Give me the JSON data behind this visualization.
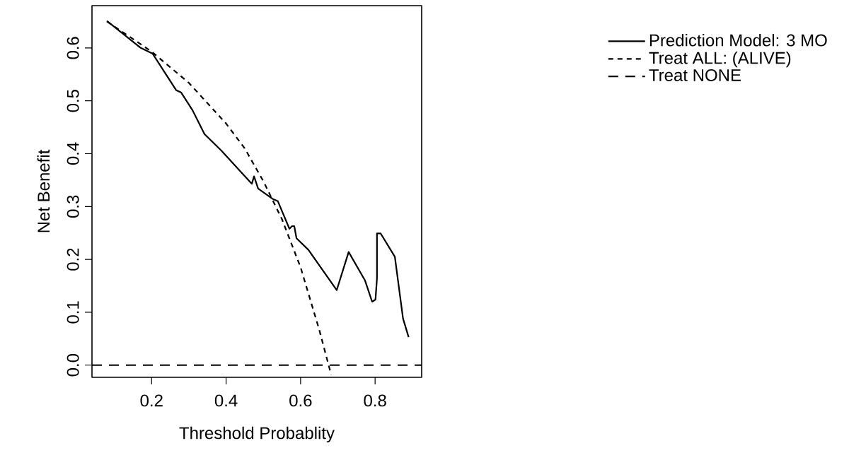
{
  "chart_data": {
    "type": "line",
    "xlabel": "Threshold Probablity",
    "ylabel": "Net Benefit",
    "xlim": [
      0.04,
      0.925
    ],
    "ylim": [
      -0.023,
      0.68
    ],
    "xticks": [
      0.2,
      0.4,
      0.6,
      0.8
    ],
    "yticks": [
      {
        "value": 0,
        "label": "0.0"
      },
      0.1,
      0.2,
      0.3,
      0.4,
      0.5,
      0.6
    ],
    "legend": "top right",
    "series": [
      {
        "name": "Prediction Model: 3 MO",
        "color": "#000000",
        "line_style": "solid",
        "x": [
          0.08,
          0.171,
          0.203,
          0.266,
          0.279,
          0.31,
          0.342,
          0.387,
          0.469,
          0.475,
          0.486,
          0.526,
          0.539,
          0.57,
          0.577,
          0.583,
          0.589,
          0.621,
          0.697,
          0.729,
          0.773,
          0.792,
          0.801,
          0.805,
          0.805,
          0.815,
          0.853,
          0.875,
          0.89
        ],
        "values": [
          0.651,
          0.6,
          0.589,
          0.52,
          0.516,
          0.482,
          0.437,
          0.406,
          0.343,
          0.357,
          0.334,
          0.314,
          0.31,
          0.258,
          0.263,
          0.263,
          0.24,
          0.218,
          0.142,
          0.214,
          0.16,
          0.12,
          0.124,
          0.164,
          0.249,
          0.249,
          0.205,
          0.088,
          0.053
        ]
      },
      {
        "name": "Treat ALL: (ALIVE)",
        "color": "#000000",
        "line_style": "dotted",
        "x": [
          0.08,
          0.15,
          0.2,
          0.3,
          0.4,
          0.45,
          0.5,
          0.55,
          0.6,
          0.65,
          0.682
        ],
        "values": [
          0.65,
          0.617,
          0.593,
          0.534,
          0.457,
          0.41,
          0.348,
          0.276,
          0.185,
          0.067,
          -0.018
        ]
      },
      {
        "name": "Treat NONE",
        "color": "#000000",
        "line_style": "dashed",
        "x": [
          0.04,
          0.925
        ],
        "values": [
          0,
          0
        ]
      }
    ]
  }
}
